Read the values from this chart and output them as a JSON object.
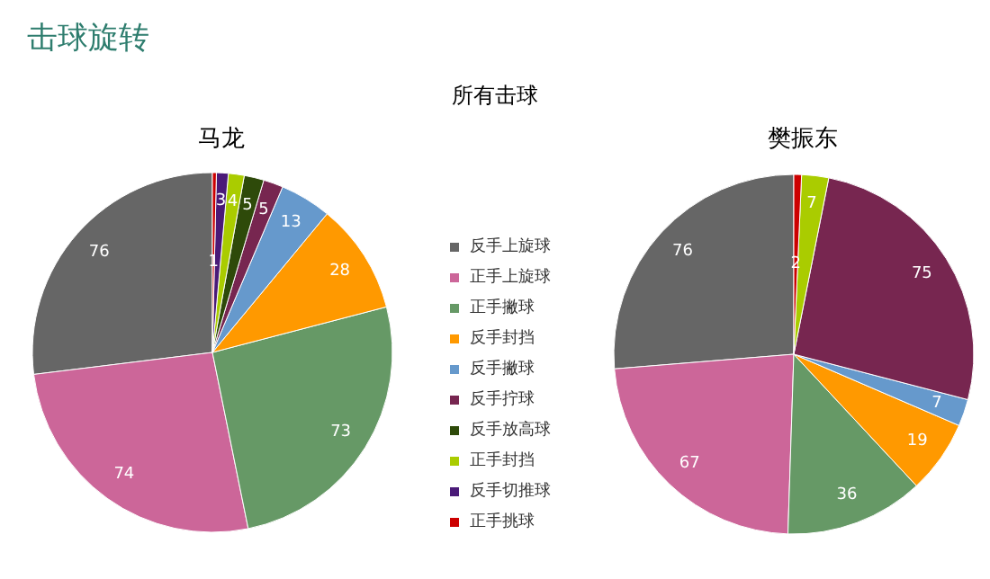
{
  "chart_data": {
    "type": "pie",
    "title": "击球旋转",
    "subtitle": "所有击球",
    "categories": [
      "反手上旋球",
      "正手上旋球",
      "正手撇球",
      "反手封挡",
      "反手撇球",
      "反手拧球",
      "反手放高球",
      "正手封挡",
      "反手切推球",
      "正手挑球"
    ],
    "colors": [
      "#666666",
      "#cc6699",
      "#669966",
      "#ff9900",
      "#6699cc",
      "#772650",
      "#2e4a0a",
      "#aacc00",
      "#4a1a78",
      "#cc0000"
    ],
    "series": [
      {
        "name": "马龙",
        "values": [
          76,
          74,
          73,
          28,
          13,
          5,
          5,
          4,
          3,
          1
        ]
      },
      {
        "name": "樊振东",
        "values": [
          76,
          67,
          36,
          19,
          7,
          75,
          null,
          7,
          null,
          2
        ]
      }
    ],
    "data_labels": true,
    "legend": "center"
  }
}
